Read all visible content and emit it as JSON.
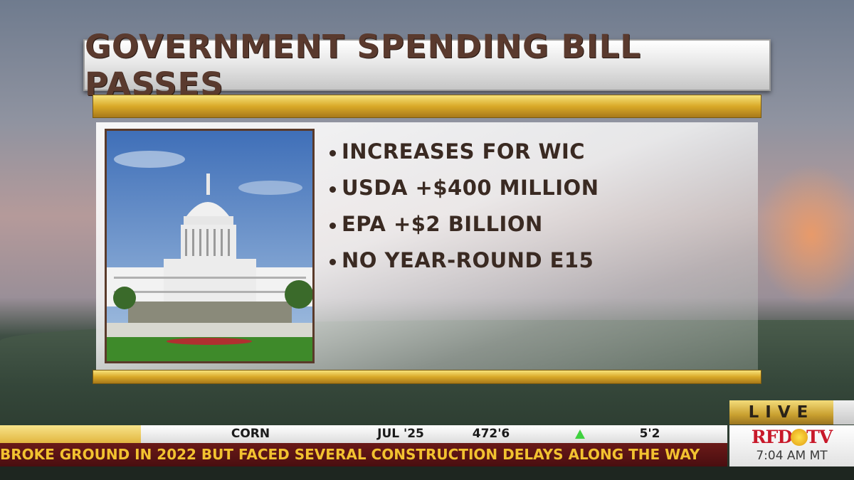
{
  "headline": "GOVERNMENT SPENDING BILL PASSES",
  "bullets": [
    "INCREASES FOR WIC",
    "USDA +$400 MILLION",
    "EPA +$2 BILLION",
    "NO YEAR-ROUND E15"
  ],
  "live_label": "LIVE",
  "ticker": {
    "commodity": "CORN",
    "contract": "JUL '25",
    "price": "472'6",
    "direction": "up",
    "direction_icon": "up-triangle-icon",
    "change": "5'2"
  },
  "crawl_text": "BROKE GROUND IN 2022 BUT FACED SEVERAL CONSTRUCTION DELAYS ALONG THE WAY",
  "logo": {
    "left": "RFD",
    "right": "TV"
  },
  "clock": "7:04 AM MT",
  "colors": {
    "headline": "#5a3a2e",
    "gold": "#d9a928",
    "crawl_bg": "#5a1414",
    "crawl_text": "#f2c230",
    "logo_red": "#c8192a",
    "up": "#3fd13f"
  }
}
